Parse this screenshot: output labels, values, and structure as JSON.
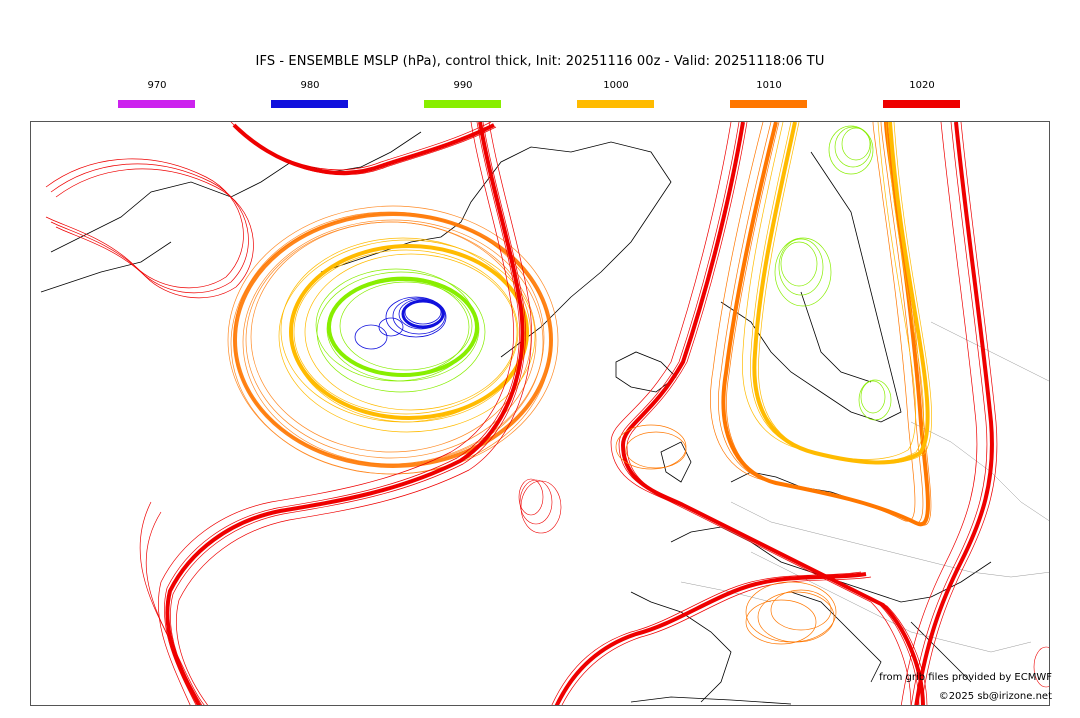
{
  "title": "IFS - ENSEMBLE MSLP (hPa), control thick, Init: 20251116 00z - Valid: 20251118:06 TU",
  "legend": [
    {
      "label": "970",
      "color": "#cc22ee"
    },
    {
      "label": "980",
      "color": "#1010dd"
    },
    {
      "label": "990",
      "color": "#88ee00"
    },
    {
      "label": "1000",
      "color": "#ffbb00"
    },
    {
      "label": "1010",
      "color": "#ff7700"
    },
    {
      "label": "1020",
      "color": "#ee0000"
    }
  ],
  "credits": {
    "source": "from grib files provided by ECMWF",
    "copyright": "©2025 sb@irizone.net"
  }
}
